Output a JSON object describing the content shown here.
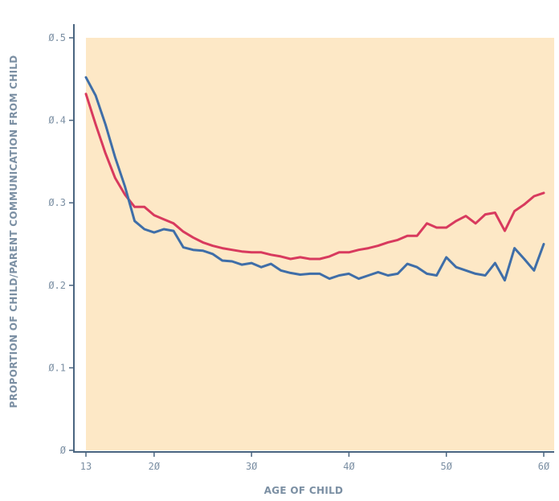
{
  "chart_data": {
    "type": "line",
    "xlabel": "AGE OF CHILD",
    "ylabel": "PROPORTION OF CHILD/PARENT COMMUNICATION FROM CHILD",
    "xlim": [
      13,
      61
    ],
    "ylim": [
      0,
      0.5
    ],
    "x_ticks": [
      13,
      20,
      30,
      40,
      50,
      60
    ],
    "x_tick_labels": [
      "13",
      "2Ø",
      "3Ø",
      "4Ø",
      "5Ø",
      "6Ø"
    ],
    "y_ticks": [
      0,
      0.1,
      0.2,
      0.3,
      0.4,
      0.5
    ],
    "y_tick_labels": [
      "Ø",
      "Ø.1",
      "Ø.2",
      "Ø.3",
      "Ø.4",
      "Ø.5"
    ],
    "grid": false,
    "legend": "none",
    "colors": {
      "plot_background": "#fde8c6",
      "axis": "#4a6580",
      "text": "#7b8fa3"
    },
    "series": [
      {
        "color": "#d83a5e",
        "x": [
          13,
          14,
          15,
          16,
          17,
          18,
          19,
          20,
          21,
          22,
          23,
          24,
          25,
          26,
          27,
          28,
          29,
          30,
          31,
          32,
          33,
          34,
          35,
          36,
          37,
          38,
          39,
          40,
          41,
          42,
          43,
          44,
          45,
          46,
          47,
          48,
          49,
          50,
          51,
          52,
          53,
          54,
          55,
          56,
          57,
          58,
          59,
          60
        ],
        "y": [
          0.432,
          0.395,
          0.36,
          0.33,
          0.31,
          0.295,
          0.295,
          0.285,
          0.28,
          0.275,
          0.265,
          0.258,
          0.252,
          0.248,
          0.245,
          0.243,
          0.241,
          0.24,
          0.24,
          0.237,
          0.235,
          0.232,
          0.234,
          0.232,
          0.232,
          0.235,
          0.24,
          0.24,
          0.243,
          0.245,
          0.248,
          0.252,
          0.255,
          0.26,
          0.26,
          0.275,
          0.27,
          0.27,
          0.278,
          0.284,
          0.275,
          0.286,
          0.288,
          0.266,
          0.29,
          0.298,
          0.308,
          0.312
        ]
      },
      {
        "color": "#3f6ea8",
        "x": [
          13,
          14,
          15,
          16,
          17,
          18,
          19,
          20,
          21,
          22,
          23,
          24,
          25,
          26,
          27,
          28,
          29,
          30,
          31,
          32,
          33,
          34,
          35,
          36,
          37,
          38,
          39,
          40,
          41,
          42,
          43,
          44,
          45,
          46,
          47,
          48,
          49,
          50,
          51,
          52,
          53,
          54,
          55,
          56,
          57,
          58,
          59,
          60
        ],
        "y": [
          0.452,
          0.43,
          0.395,
          0.355,
          0.32,
          0.278,
          0.268,
          0.264,
          0.268,
          0.266,
          0.246,
          0.243,
          0.242,
          0.238,
          0.23,
          0.229,
          0.225,
          0.227,
          0.222,
          0.226,
          0.218,
          0.215,
          0.213,
          0.214,
          0.214,
          0.208,
          0.212,
          0.214,
          0.208,
          0.212,
          0.216,
          0.212,
          0.214,
          0.226,
          0.222,
          0.214,
          0.212,
          0.234,
          0.222,
          0.218,
          0.214,
          0.212,
          0.227,
          0.206,
          0.245,
          0.232,
          0.218,
          0.25
        ]
      }
    ]
  }
}
